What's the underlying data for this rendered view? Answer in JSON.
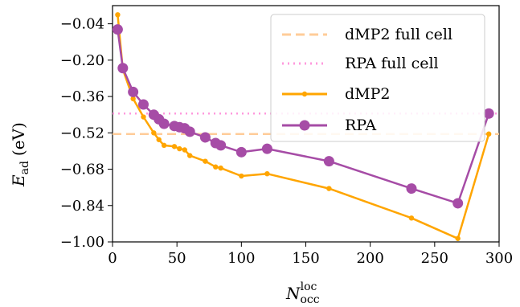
{
  "chart_data": {
    "type": "line",
    "xlabel": {
      "main": "N",
      "sup": "loc",
      "sub": "occ"
    },
    "ylabel": {
      "main": "E",
      "sub": "ad",
      "unit": "(eV)"
    },
    "xlim": [
      0,
      300
    ],
    "ylim": [
      -1.0,
      0.04
    ],
    "xticks": [
      0,
      50,
      100,
      150,
      200,
      250,
      300
    ],
    "yticks": [
      -1.0,
      -0.84,
      -0.68,
      -0.52,
      -0.36,
      -0.2,
      -0.04
    ],
    "ytick_labels": [
      "−1.00",
      "−0.84",
      "−0.68",
      "−0.52",
      "−0.36",
      "−0.20",
      "−0.04"
    ],
    "xtick_labels": [
      "0",
      "50",
      "100",
      "150",
      "200",
      "250",
      "300"
    ],
    "grid": false,
    "legend_position": "top-right",
    "series": [
      {
        "name": "dMP2 full cell",
        "style": "dashed",
        "color": "#ffcc99",
        "kind": "hline",
        "y": -0.525
      },
      {
        "name": "RPA full cell",
        "style": "dotted",
        "color": "#ff99dd",
        "kind": "hline",
        "y": -0.435
      },
      {
        "name": "dMP2",
        "style": "line-marker",
        "color": "#ffa500",
        "marker_size": "small",
        "x": [
          4,
          8,
          16,
          24,
          32,
          36,
          40,
          48,
          52,
          56,
          60,
          72,
          80,
          84,
          100,
          120,
          168,
          232,
          268,
          292
        ],
        "y": [
          0.0,
          -0.24,
          -0.37,
          -0.45,
          -0.52,
          -0.55,
          -0.575,
          -0.58,
          -0.59,
          -0.595,
          -0.62,
          -0.645,
          -0.67,
          -0.675,
          -0.71,
          -0.7,
          -0.765,
          -0.895,
          -0.985,
          -0.525
        ]
      },
      {
        "name": "RPA",
        "style": "line-marker",
        "color": "#a64ca6",
        "marker_size": "large",
        "x": [
          4,
          8,
          16,
          24,
          32,
          36,
          40,
          48,
          52,
          56,
          60,
          72,
          80,
          84,
          100,
          120,
          168,
          232,
          268,
          292
        ],
        "y": [
          -0.065,
          -0.235,
          -0.34,
          -0.395,
          -0.44,
          -0.46,
          -0.48,
          -0.49,
          -0.495,
          -0.5,
          -0.515,
          -0.54,
          -0.565,
          -0.575,
          -0.605,
          -0.59,
          -0.645,
          -0.765,
          -0.83,
          -0.435
        ]
      }
    ]
  }
}
